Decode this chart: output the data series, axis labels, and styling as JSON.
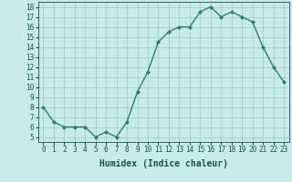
{
  "x": [
    0,
    1,
    2,
    3,
    4,
    5,
    6,
    7,
    8,
    9,
    10,
    11,
    12,
    13,
    14,
    15,
    16,
    17,
    18,
    19,
    20,
    21,
    22,
    23
  ],
  "y": [
    8,
    6.5,
    6,
    6,
    6,
    5,
    5.5,
    5,
    6.5,
    9.5,
    11.5,
    14.5,
    15.5,
    16,
    16,
    17.5,
    18,
    17,
    17.5,
    17,
    16.5,
    14,
    12,
    10.5
  ],
  "line_color": "#2e7d6e",
  "marker": "D",
  "marker_size": 2,
  "bg_color": "#c8eaea",
  "grid_color": "#a0c8c8",
  "xlabel": "Humidex (Indice chaleur)",
  "ylim": [
    5,
    18
  ],
  "xlim": [
    -0.5,
    23.5
  ],
  "yticks": [
    5,
    6,
    7,
    8,
    9,
    10,
    11,
    12,
    13,
    14,
    15,
    16,
    17,
    18
  ],
  "xticks": [
    0,
    1,
    2,
    3,
    4,
    5,
    6,
    7,
    8,
    9,
    10,
    11,
    12,
    13,
    14,
    15,
    16,
    17,
    18,
    19,
    20,
    21,
    22,
    23
  ],
  "tick_color": "#1a5050",
  "label_color": "#1a5050",
  "xlabel_fontsize": 7,
  "tick_fontsize": 5.5,
  "linewidth": 1.0
}
